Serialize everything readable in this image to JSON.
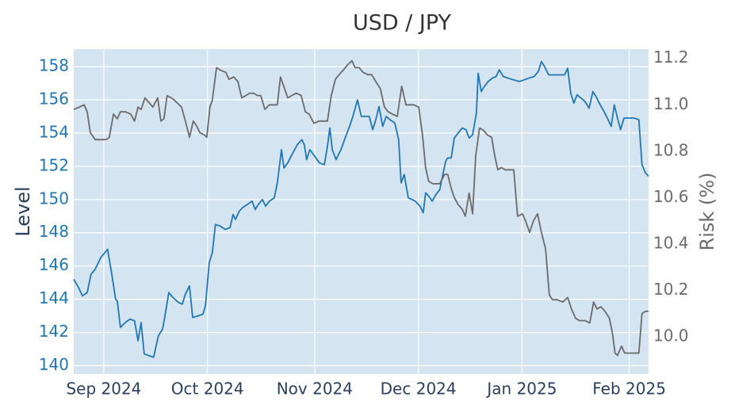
{
  "chart_data": {
    "type": "line",
    "title": "USD / JPY",
    "ylabel": "Level",
    "y2label": "Risk (%)",
    "xlim": [
      -8.7,
      157.6
    ],
    "xticks": [
      {
        "value": 0,
        "label": "Sep 2024"
      },
      {
        "value": 30,
        "label": "Oct 2024"
      },
      {
        "value": 61,
        "label": "Nov 2024"
      },
      {
        "value": 91,
        "label": "Dec 2024"
      },
      {
        "value": 121,
        "label": "Jan 2025"
      },
      {
        "value": 152,
        "label": "Feb 2025"
      }
    ],
    "ylim": [
      139.5,
      159.05
    ],
    "yticks": [
      140,
      142,
      144,
      146,
      148,
      150,
      152,
      154,
      156,
      158
    ],
    "y2lim": [
      9.84,
      11.24
    ],
    "y2ticks": [
      {
        "value": 10,
        "label": "10.0"
      },
      {
        "value": 10.2,
        "label": "10.2"
      },
      {
        "value": 10.4,
        "label": "10.4"
      },
      {
        "value": 10.6,
        "label": "10.6"
      },
      {
        "value": 10.8,
        "label": "10.8"
      },
      {
        "value": 11,
        "label": "11.0"
      },
      {
        "value": 11.2,
        "label": "11.2"
      }
    ],
    "grid": true,
    "background": "#d5e4f1",
    "series": [
      {
        "color": "#1f77b4",
        "axis": "y",
        "x": [
          -8.7,
          -7.3,
          -6.2,
          -4.8,
          -3.7,
          -2.5,
          -0.9,
          1.1,
          2.3,
          3.4,
          3.9,
          4.8,
          6.2,
          7.6,
          8.9,
          9.9,
          10.8,
          11.7,
          13.1,
          14.4,
          15.8,
          17.0,
          17.7,
          18.8,
          20.0,
          21.6,
          22.7,
          23.6,
          24.8,
          25.7,
          27.3,
          28.7,
          29.4,
          30.5,
          31.4,
          32.3,
          33.7,
          35.1,
          36.5,
          37.4,
          38.1,
          39.2,
          40.1,
          41.5,
          42.9,
          43.8,
          44.7,
          45.9,
          46.8,
          47.9,
          49.3,
          50.2,
          51.4,
          52.1,
          53.2,
          54.4,
          56.0,
          57.3,
          58.0,
          58.7,
          59.6,
          61.0,
          62.4,
          63.8,
          64.7,
          65.4,
          66.1,
          67.2,
          68.6,
          70.0,
          71.1,
          72.2,
          73.4,
          74.5,
          75.7,
          76.8,
          77.8,
          78.7,
          79.6,
          80.7,
          81.7,
          82.8,
          84.2,
          85.3,
          86.0,
          86.9,
          88.1,
          89.2,
          90.1,
          91.5,
          92.4,
          93.1,
          94.0,
          95.0,
          96.1,
          97.2,
          97.9,
          98.9,
          99.5,
          100.5,
          101.4,
          102.5,
          103.7,
          104.8,
          105.7,
          106.7,
          107.8,
          108.3,
          109.2,
          110.1,
          111.2,
          112.4,
          113.5,
          114.4,
          115.6,
          117.0,
          118.6,
          120.2,
          121.6,
          122.9,
          124.5,
          125.7,
          126.6,
          127.5,
          128.7,
          130.0,
          131.7,
          133.3,
          134.2,
          135.1,
          136.0,
          136.9,
          138.1,
          139.2,
          140.4,
          141.5,
          142.4,
          143.6,
          144.7,
          145.9,
          146.8,
          147.7,
          148.6,
          149.5,
          150.5,
          151.8,
          153.4,
          154.8,
          155.7,
          156.7,
          157.6
        ],
        "values": [
          145.2,
          144.7,
          144.2,
          144.4,
          145.5,
          145.8,
          146.5,
          147.0,
          145.5,
          144.0,
          143.9,
          142.3,
          142.6,
          142.8,
          142.7,
          141.5,
          142.6,
          140.7,
          140.6,
          140.5,
          141.8,
          142.2,
          143.0,
          144.4,
          144.1,
          143.8,
          143.7,
          144.3,
          144.8,
          142.9,
          143.0,
          143.1,
          143.6,
          146.2,
          146.8,
          148.5,
          148.4,
          148.2,
          148.3,
          149.1,
          148.8,
          149.3,
          149.5,
          149.7,
          149.9,
          149.4,
          149.7,
          150.0,
          149.6,
          149.9,
          150.1,
          151.0,
          153.0,
          151.9,
          152.2,
          152.7,
          153.3,
          153.6,
          153.3,
          152.4,
          153.0,
          152.6,
          152.2,
          152.1,
          153.2,
          154.3,
          153.0,
          152.4,
          153.0,
          153.8,
          154.4,
          155.1,
          156.0,
          155.0,
          155.0,
          155.0,
          154.2,
          154.8,
          155.6,
          154.4,
          155.0,
          154.8,
          154.6,
          153.6,
          151.0,
          151.5,
          150.1,
          150.0,
          149.9,
          149.6,
          149.2,
          150.4,
          150.2,
          149.9,
          150.3,
          150.6,
          151.3,
          152.3,
          152.5,
          152.5,
          153.7,
          154.0,
          154.3,
          154.2,
          153.7,
          153.9,
          155.2,
          157.6,
          156.5,
          156.8,
          157.1,
          157.3,
          157.4,
          157.8,
          157.4,
          157.3,
          157.2,
          157.1,
          157.2,
          157.3,
          157.4,
          157.7,
          158.3,
          158.0,
          157.5,
          157.5,
          157.5,
          157.5,
          157.9,
          156.4,
          155.8,
          156.3,
          156.1,
          155.9,
          155.5,
          156.5,
          156.2,
          155.7,
          155.3,
          154.8,
          154.4,
          155.7,
          154.9,
          154.2,
          154.9,
          154.9,
          154.9,
          154.8,
          152.1,
          151.6,
          151.4
        ]
      },
      {
        "color": "#6b6b6b",
        "axis": "y2",
        "x": [
          -8.7,
          -7.1,
          -5.7,
          -4.8,
          -3.9,
          -2.5,
          -0.9,
          0.7,
          1.6,
          2.8,
          3.9,
          4.8,
          6.2,
          7.8,
          8.9,
          9.9,
          10.8,
          11.9,
          13.1,
          14.2,
          15.6,
          16.5,
          17.4,
          18.3,
          19.5,
          20.4,
          22.5,
          23.6,
          24.8,
          25.9,
          26.8,
          27.8,
          29.1,
          29.8,
          30.7,
          31.4,
          32.6,
          33.7,
          35.3,
          36.2,
          37.6,
          38.8,
          39.9,
          41.1,
          42.2,
          43.3,
          44.5,
          45.4,
          46.6,
          47.9,
          49.3,
          50.2,
          51.1,
          52.3,
          53.2,
          54.4,
          55.7,
          57.1,
          58.3,
          59.4,
          60.8,
          62.2,
          63.8,
          64.7,
          65.8,
          67.0,
          68.1,
          69.3,
          70.4,
          71.8,
          72.7,
          73.9,
          75.0,
          76.4,
          77.5,
          78.7,
          80.0,
          81.2,
          82.3,
          83.5,
          84.9,
          86.2,
          87.4,
          88.5,
          89.7,
          91.1,
          92.2,
          93.1,
          94.0,
          95.2,
          96.3,
          97.2,
          98.6,
          99.5,
          100.5,
          101.4,
          102.5,
          103.7,
          104.6,
          105.7,
          106.7,
          107.6,
          108.7,
          109.9,
          111.0,
          112.2,
          113.1,
          114.0,
          115.0,
          116.1,
          117.4,
          118.6,
          119.7,
          121.1,
          122.0,
          123.2,
          124.3,
          125.5,
          126.6,
          127.8,
          128.9,
          129.8,
          131.2,
          132.8,
          134.2,
          135.3,
          136.5,
          137.6,
          139.2,
          140.6,
          141.7,
          142.7,
          143.8,
          145.0,
          146.3,
          147.2,
          147.9,
          148.6,
          149.8,
          150.7,
          152.3,
          154.1,
          154.8,
          155.7,
          156.7,
          157.6
        ],
        "values": [
          10.98,
          10.99,
          11.0,
          10.97,
          10.88,
          10.85,
          10.85,
          10.85,
          10.86,
          10.96,
          10.94,
          10.97,
          10.97,
          10.96,
          10.93,
          10.99,
          10.98,
          11.03,
          11.01,
          10.99,
          11.03,
          10.93,
          10.94,
          11.04,
          11.03,
          11.02,
          10.99,
          10.93,
          10.86,
          10.93,
          10.91,
          10.88,
          10.87,
          10.86,
          10.99,
          11.02,
          11.16,
          11.15,
          11.14,
          11.11,
          11.12,
          11.1,
          11.03,
          11.04,
          11.05,
          11.05,
          11.04,
          11.04,
          10.98,
          11.0,
          11.0,
          11.0,
          11.12,
          11.07,
          11.03,
          11.04,
          11.05,
          11.04,
          10.97,
          10.96,
          10.92,
          10.93,
          10.93,
          10.93,
          11.04,
          11.11,
          11.13,
          11.15,
          11.17,
          11.19,
          11.16,
          11.16,
          11.14,
          11.13,
          11.13,
          11.1,
          11.07,
          10.99,
          10.97,
          10.96,
          10.95,
          11.08,
          11.0,
          11.0,
          11.0,
          10.99,
          10.87,
          10.73,
          10.67,
          10.66,
          10.66,
          10.66,
          10.7,
          10.7,
          10.64,
          10.6,
          10.57,
          10.55,
          10.52,
          10.62,
          10.53,
          10.78,
          10.9,
          10.89,
          10.87,
          10.86,
          10.78,
          10.72,
          10.73,
          10.72,
          10.72,
          10.72,
          10.52,
          10.53,
          10.5,
          10.45,
          10.5,
          10.53,
          10.45,
          10.38,
          10.18,
          10.16,
          10.16,
          10.15,
          10.17,
          10.12,
          10.08,
          10.07,
          10.07,
          10.06,
          10.15,
          10.12,
          10.13,
          10.11,
          10.08,
          10.01,
          9.93,
          9.92,
          9.96,
          9.93,
          9.93,
          9.93,
          9.93,
          10.1,
          10.11,
          10.11
        ]
      }
    ]
  }
}
